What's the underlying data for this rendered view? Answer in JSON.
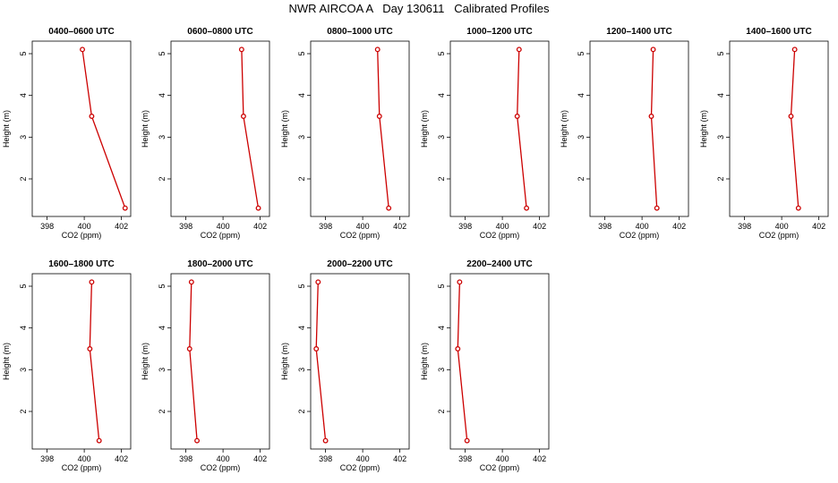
{
  "title": "NWR AIRCOA A   Day 130611   Calibrated Profiles",
  "chart_data": {
    "type": "line",
    "xlabel": "CO2 (ppm)",
    "ylabel": "Height (m)",
    "xlim": [
      397.2,
      402.5
    ],
    "ylim": [
      1.1,
      5.3
    ],
    "xticks": [
      398,
      400,
      402
    ],
    "yticks": [
      2,
      3,
      4,
      5
    ],
    "line_color": "#cc0000",
    "panels": [
      {
        "title": "0400–0600 UTC",
        "points": [
          {
            "x": 399.9,
            "y": 5.1
          },
          {
            "x": 400.4,
            "y": 3.5
          },
          {
            "x": 402.2,
            "y": 1.3
          }
        ]
      },
      {
        "title": "0600–0800 UTC",
        "points": [
          {
            "x": 401.0,
            "y": 5.1
          },
          {
            "x": 401.1,
            "y": 3.5
          },
          {
            "x": 401.9,
            "y": 1.3
          }
        ]
      },
      {
        "title": "0800–1000 UTC",
        "points": [
          {
            "x": 400.8,
            "y": 5.1
          },
          {
            "x": 400.9,
            "y": 3.5
          },
          {
            "x": 401.4,
            "y": 1.3
          }
        ]
      },
      {
        "title": "1000–1200 UTC",
        "points": [
          {
            "x": 400.9,
            "y": 5.1
          },
          {
            "x": 400.8,
            "y": 3.5
          },
          {
            "x": 401.3,
            "y": 1.3
          }
        ]
      },
      {
        "title": "1200–1400 UTC",
        "points": [
          {
            "x": 400.6,
            "y": 5.1
          },
          {
            "x": 400.5,
            "y": 3.5
          },
          {
            "x": 400.8,
            "y": 1.3
          }
        ]
      },
      {
        "title": "1400–1600 UTC",
        "points": [
          {
            "x": 400.7,
            "y": 5.1
          },
          {
            "x": 400.5,
            "y": 3.5
          },
          {
            "x": 400.9,
            "y": 1.3
          }
        ]
      },
      {
        "title": "1600–1800 UTC",
        "points": [
          {
            "x": 400.4,
            "y": 5.1
          },
          {
            "x": 400.3,
            "y": 3.5
          },
          {
            "x": 400.8,
            "y": 1.3
          }
        ]
      },
      {
        "title": "1800–2000 UTC",
        "points": [
          {
            "x": 398.3,
            "y": 5.1
          },
          {
            "x": 398.2,
            "y": 3.5
          },
          {
            "x": 398.6,
            "y": 1.3
          }
        ]
      },
      {
        "title": "2000–2200 UTC",
        "points": [
          {
            "x": 397.6,
            "y": 5.1
          },
          {
            "x": 397.5,
            "y": 3.5
          },
          {
            "x": 398.0,
            "y": 1.3
          }
        ]
      },
      {
        "title": "2200–2400 UTC",
        "points": [
          {
            "x": 397.7,
            "y": 5.1
          },
          {
            "x": 397.6,
            "y": 3.5
          },
          {
            "x": 398.1,
            "y": 1.3
          }
        ]
      }
    ]
  }
}
